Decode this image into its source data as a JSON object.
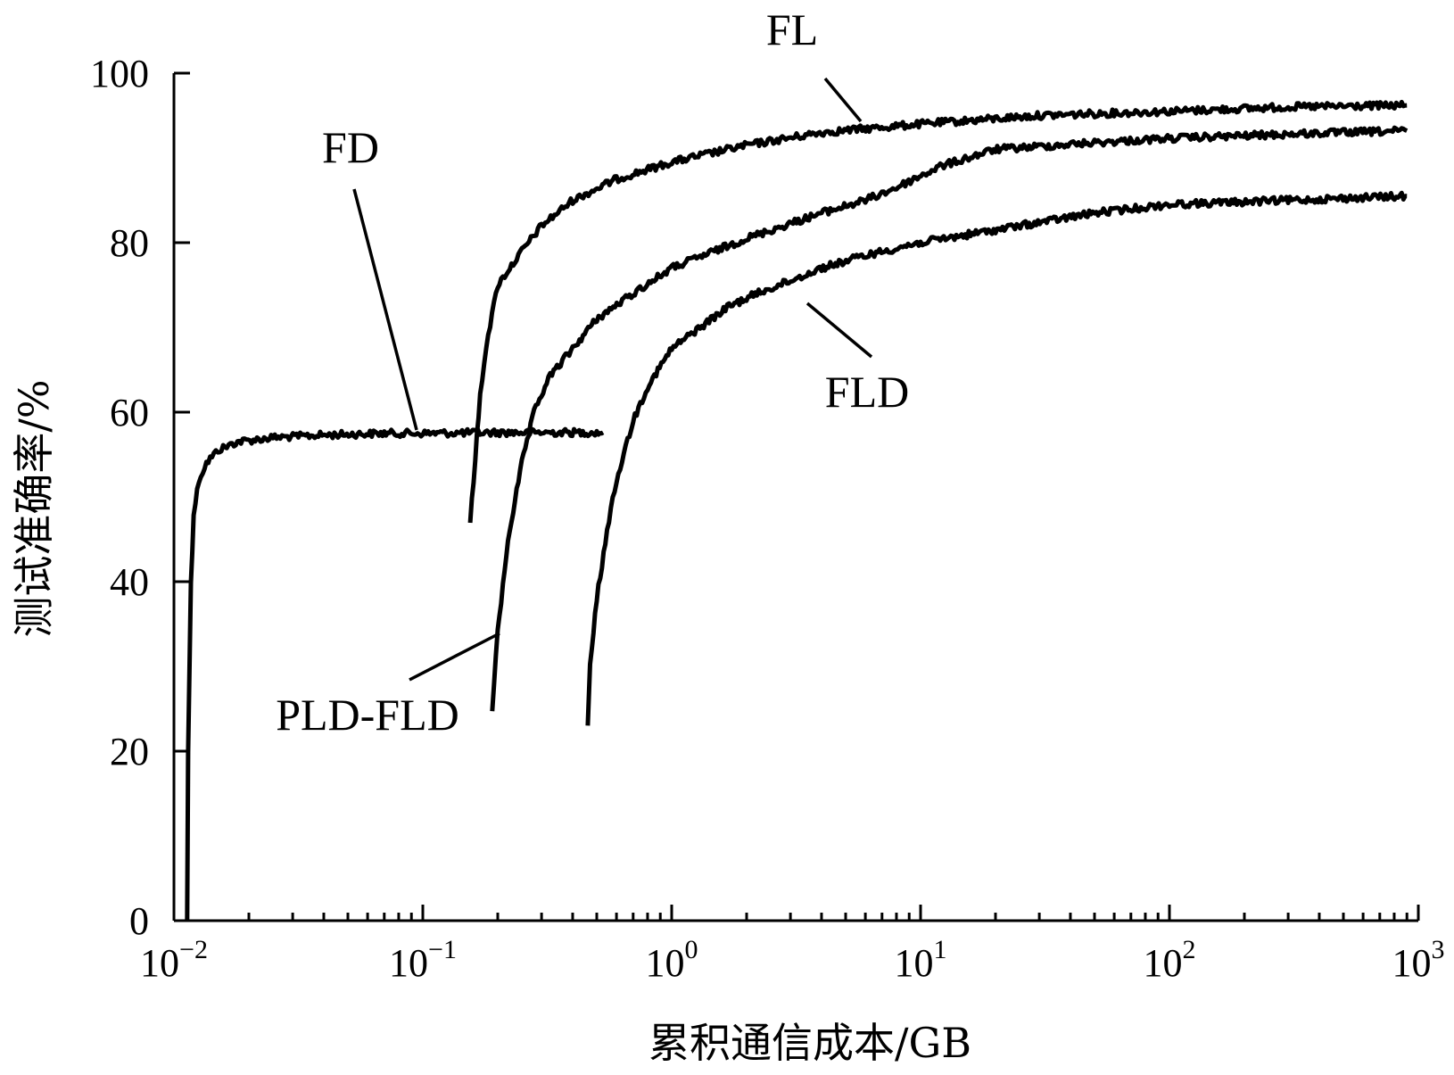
{
  "chart_data": {
    "type": "line",
    "title": "",
    "xlabel": "累积通信成本/GB",
    "ylabel": "测试准确率/%",
    "xscale": "log",
    "xlim": [
      0.01,
      1000
    ],
    "ylim": [
      0,
      100
    ],
    "grid": false,
    "legend": "direct labels on curves",
    "yticks": [
      {
        "value": 0,
        "label": "0"
      },
      {
        "value": 20,
        "label": "20"
      },
      {
        "value": 40,
        "label": "40"
      },
      {
        "value": 60,
        "label": "60"
      },
      {
        "value": 80,
        "label": "80"
      },
      {
        "value": 100,
        "label": "100"
      }
    ],
    "xticks": [
      {
        "value": 0.01,
        "base": "10",
        "exp": "−2"
      },
      {
        "value": 0.1,
        "base": "10",
        "exp": "−1"
      },
      {
        "value": 1,
        "base": "10",
        "exp": "0"
      },
      {
        "value": 10,
        "base": "10",
        "exp": "1"
      },
      {
        "value": 100,
        "base": "10",
        "exp": "2"
      },
      {
        "value": 1000,
        "base": "10",
        "exp": "3"
      }
    ],
    "series": [
      {
        "name": "FD",
        "x": [
          0.0113,
          0.0114,
          0.0117,
          0.012,
          0.0126,
          0.0135,
          0.015,
          0.018,
          0.025,
          0.04,
          0.07,
          0.1,
          0.2,
          0.35,
          0.5,
          0.53
        ],
        "y": [
          0,
          20,
          40,
          48,
          52,
          54,
          55.5,
          56.5,
          57,
          57.3,
          57.5,
          57.5,
          57.6,
          57.6,
          57.6,
          57.6
        ]
      },
      {
        "name": "FL",
        "x": [
          0.155,
          0.16,
          0.17,
          0.18,
          0.2,
          0.25,
          0.3,
          0.4,
          0.6,
          1,
          2,
          4,
          10,
          30,
          100,
          300,
          900
        ],
        "y": [
          47,
          52,
          62,
          68,
          75,
          79,
          82,
          85,
          87.5,
          89.5,
          91.5,
          93,
          94,
          95,
          95.5,
          96,
          96.2
        ]
      },
      {
        "name": "PLD-FLD",
        "x": [
          0.19,
          0.2,
          0.22,
          0.25,
          0.28,
          0.32,
          0.4,
          0.5,
          0.7,
          1,
          2,
          4,
          6,
          8,
          12,
          20,
          50,
          100,
          300,
          900
        ],
        "y": [
          25,
          34,
          45,
          54,
          60,
          64,
          67.5,
          71,
          74,
          77,
          80.5,
          83.5,
          85,
          86.5,
          89,
          91,
          91.8,
          92.3,
          92.8,
          93.2
        ]
      },
      {
        "name": "FLD",
        "x": [
          0.46,
          0.47,
          0.5,
          0.55,
          0.6,
          0.7,
          0.8,
          1,
          1.3,
          1.7,
          2.2,
          3,
          4,
          6,
          10,
          20,
          50,
          100,
          300,
          900
        ],
        "y": [
          23,
          30,
          38,
          46,
          52,
          59,
          63,
          67.5,
          70,
          72.5,
          74,
          75.5,
          77,
          78.5,
          80,
          81.5,
          83.5,
          84.5,
          85,
          85.5
        ]
      }
    ]
  },
  "labels": [
    {
      "series": "FL",
      "text": "FL"
    },
    {
      "series": "FD",
      "text": "FD"
    },
    {
      "series": "FLD",
      "text": "FLD"
    },
    {
      "series": "PLD-FLD",
      "text": "PLD-FLD"
    }
  ]
}
